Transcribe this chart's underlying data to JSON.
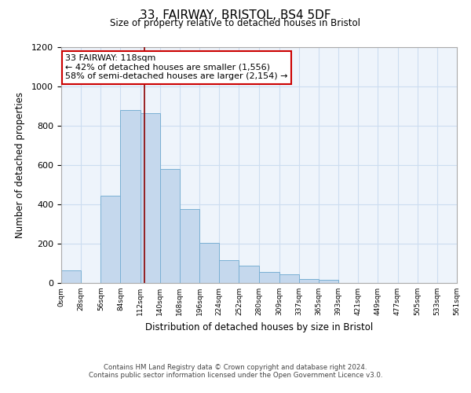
{
  "title": "33, FAIRWAY, BRISTOL, BS4 5DF",
  "subtitle": "Size of property relative to detached houses in Bristol",
  "xlabel": "Distribution of detached houses by size in Bristol",
  "ylabel": "Number of detached properties",
  "bar_edges": [
    0,
    28,
    56,
    84,
    112,
    140,
    168,
    196,
    224,
    252,
    280,
    309,
    337,
    365,
    393,
    421,
    449,
    477,
    505,
    533,
    561
  ],
  "bar_heights": [
    65,
    0,
    445,
    880,
    865,
    580,
    375,
    205,
    115,
    90,
    55,
    45,
    20,
    15,
    0,
    0,
    0,
    0,
    0,
    0
  ],
  "bar_color": "#c5d8ed",
  "bar_edge_color": "#7ab0d4",
  "property_line_x": 118,
  "property_line_color": "#8b0000",
  "annotation_line1": "33 FAIRWAY: 118sqm",
  "annotation_line2": "← 42% of detached houses are smaller (1,556)",
  "annotation_line3": "58% of semi-detached houses are larger (2,154) →",
  "annotation_box_color": "#ffffff",
  "annotation_box_edge_color": "#cc0000",
  "xlim": [
    0,
    561
  ],
  "ylim": [
    0,
    1200
  ],
  "yticks": [
    0,
    200,
    400,
    600,
    800,
    1000,
    1200
  ],
  "xtick_labels": [
    "0sqm",
    "28sqm",
    "56sqm",
    "84sqm",
    "112sqm",
    "140sqm",
    "168sqm",
    "196sqm",
    "224sqm",
    "252sqm",
    "280sqm",
    "309sqm",
    "337sqm",
    "365sqm",
    "393sqm",
    "421sqm",
    "449sqm",
    "477sqm",
    "505sqm",
    "533sqm",
    "561sqm"
  ],
  "grid_color": "#ccddf0",
  "background_color": "#eef4fb",
  "footer_line1": "Contains HM Land Registry data © Crown copyright and database right 2024.",
  "footer_line2": "Contains public sector information licensed under the Open Government Licence v3.0."
}
